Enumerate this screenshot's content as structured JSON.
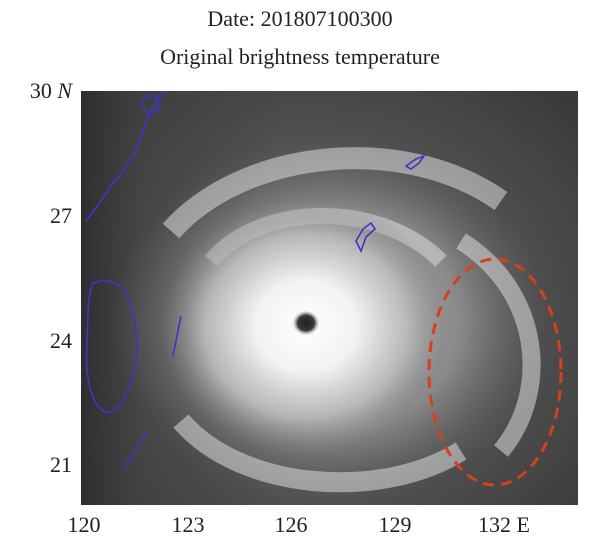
{
  "title_line1": "Date: 201807100300",
  "title_line2": "Original brightness temperature",
  "y_ticks": [
    {
      "label": "30",
      "unit": "N"
    },
    {
      "label": "27",
      "unit": ""
    },
    {
      "label": "24",
      "unit": ""
    },
    {
      "label": "21",
      "unit": ""
    }
  ],
  "x_ticks": [
    "120",
    "123",
    "126",
    "129",
    "132 E"
  ],
  "colors": {
    "coastline": "#3c36c8",
    "annotation": "#d5401f"
  },
  "annotation_shape": "dashed-ellipse"
}
